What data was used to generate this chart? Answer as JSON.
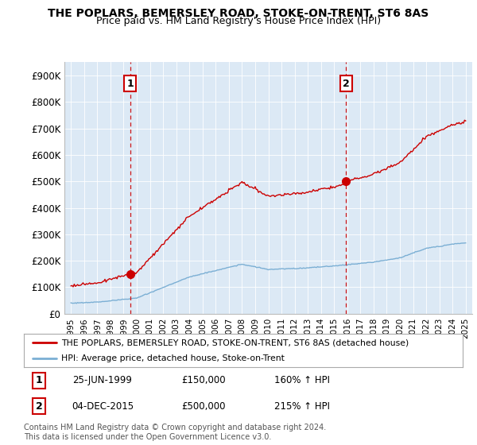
{
  "title": "THE POPLARS, BEMERSLEY ROAD, STOKE-ON-TRENT, ST6 8AS",
  "subtitle": "Price paid vs. HM Land Registry's House Price Index (HPI)",
  "ylim": [
    0,
    950000
  ],
  "yticks": [
    0,
    100000,
    200000,
    300000,
    400000,
    500000,
    600000,
    700000,
    800000,
    900000
  ],
  "ytick_labels": [
    "£0",
    "£100K",
    "£200K",
    "£300K",
    "£400K",
    "£500K",
    "£600K",
    "£700K",
    "£800K",
    "£900K"
  ],
  "marker1": {
    "x": 1999.5,
    "label": "1",
    "date": "25-JUN-1999",
    "price": "£150,000",
    "hpi": "160% ↑ HPI"
  },
  "marker2": {
    "x": 2015.917,
    "label": "2",
    "date": "04-DEC-2015",
    "price": "£500,000",
    "hpi": "215% ↑ HPI"
  },
  "legend_line1": "THE POPLARS, BEMERSLEY ROAD, STOKE-ON-TRENT, ST6 8AS (detached house)",
  "legend_line2": "HPI: Average price, detached house, Stoke-on-Trent",
  "footnote": "Contains HM Land Registry data © Crown copyright and database right 2024.\nThis data is licensed under the Open Government Licence v3.0.",
  "line_color_red": "#cc0000",
  "line_color_blue": "#7bafd4",
  "plot_bg_color": "#dce9f5",
  "fig_bg_color": "#ffffff",
  "grid_color": "#ffffff",
  "vline_color": "#cc0000",
  "title_fontsize": 10,
  "subtitle_fontsize": 9,
  "sale1_price": 150000,
  "sale2_price": 500000,
  "sale1_x": 1999.5,
  "sale2_x": 2015.917
}
